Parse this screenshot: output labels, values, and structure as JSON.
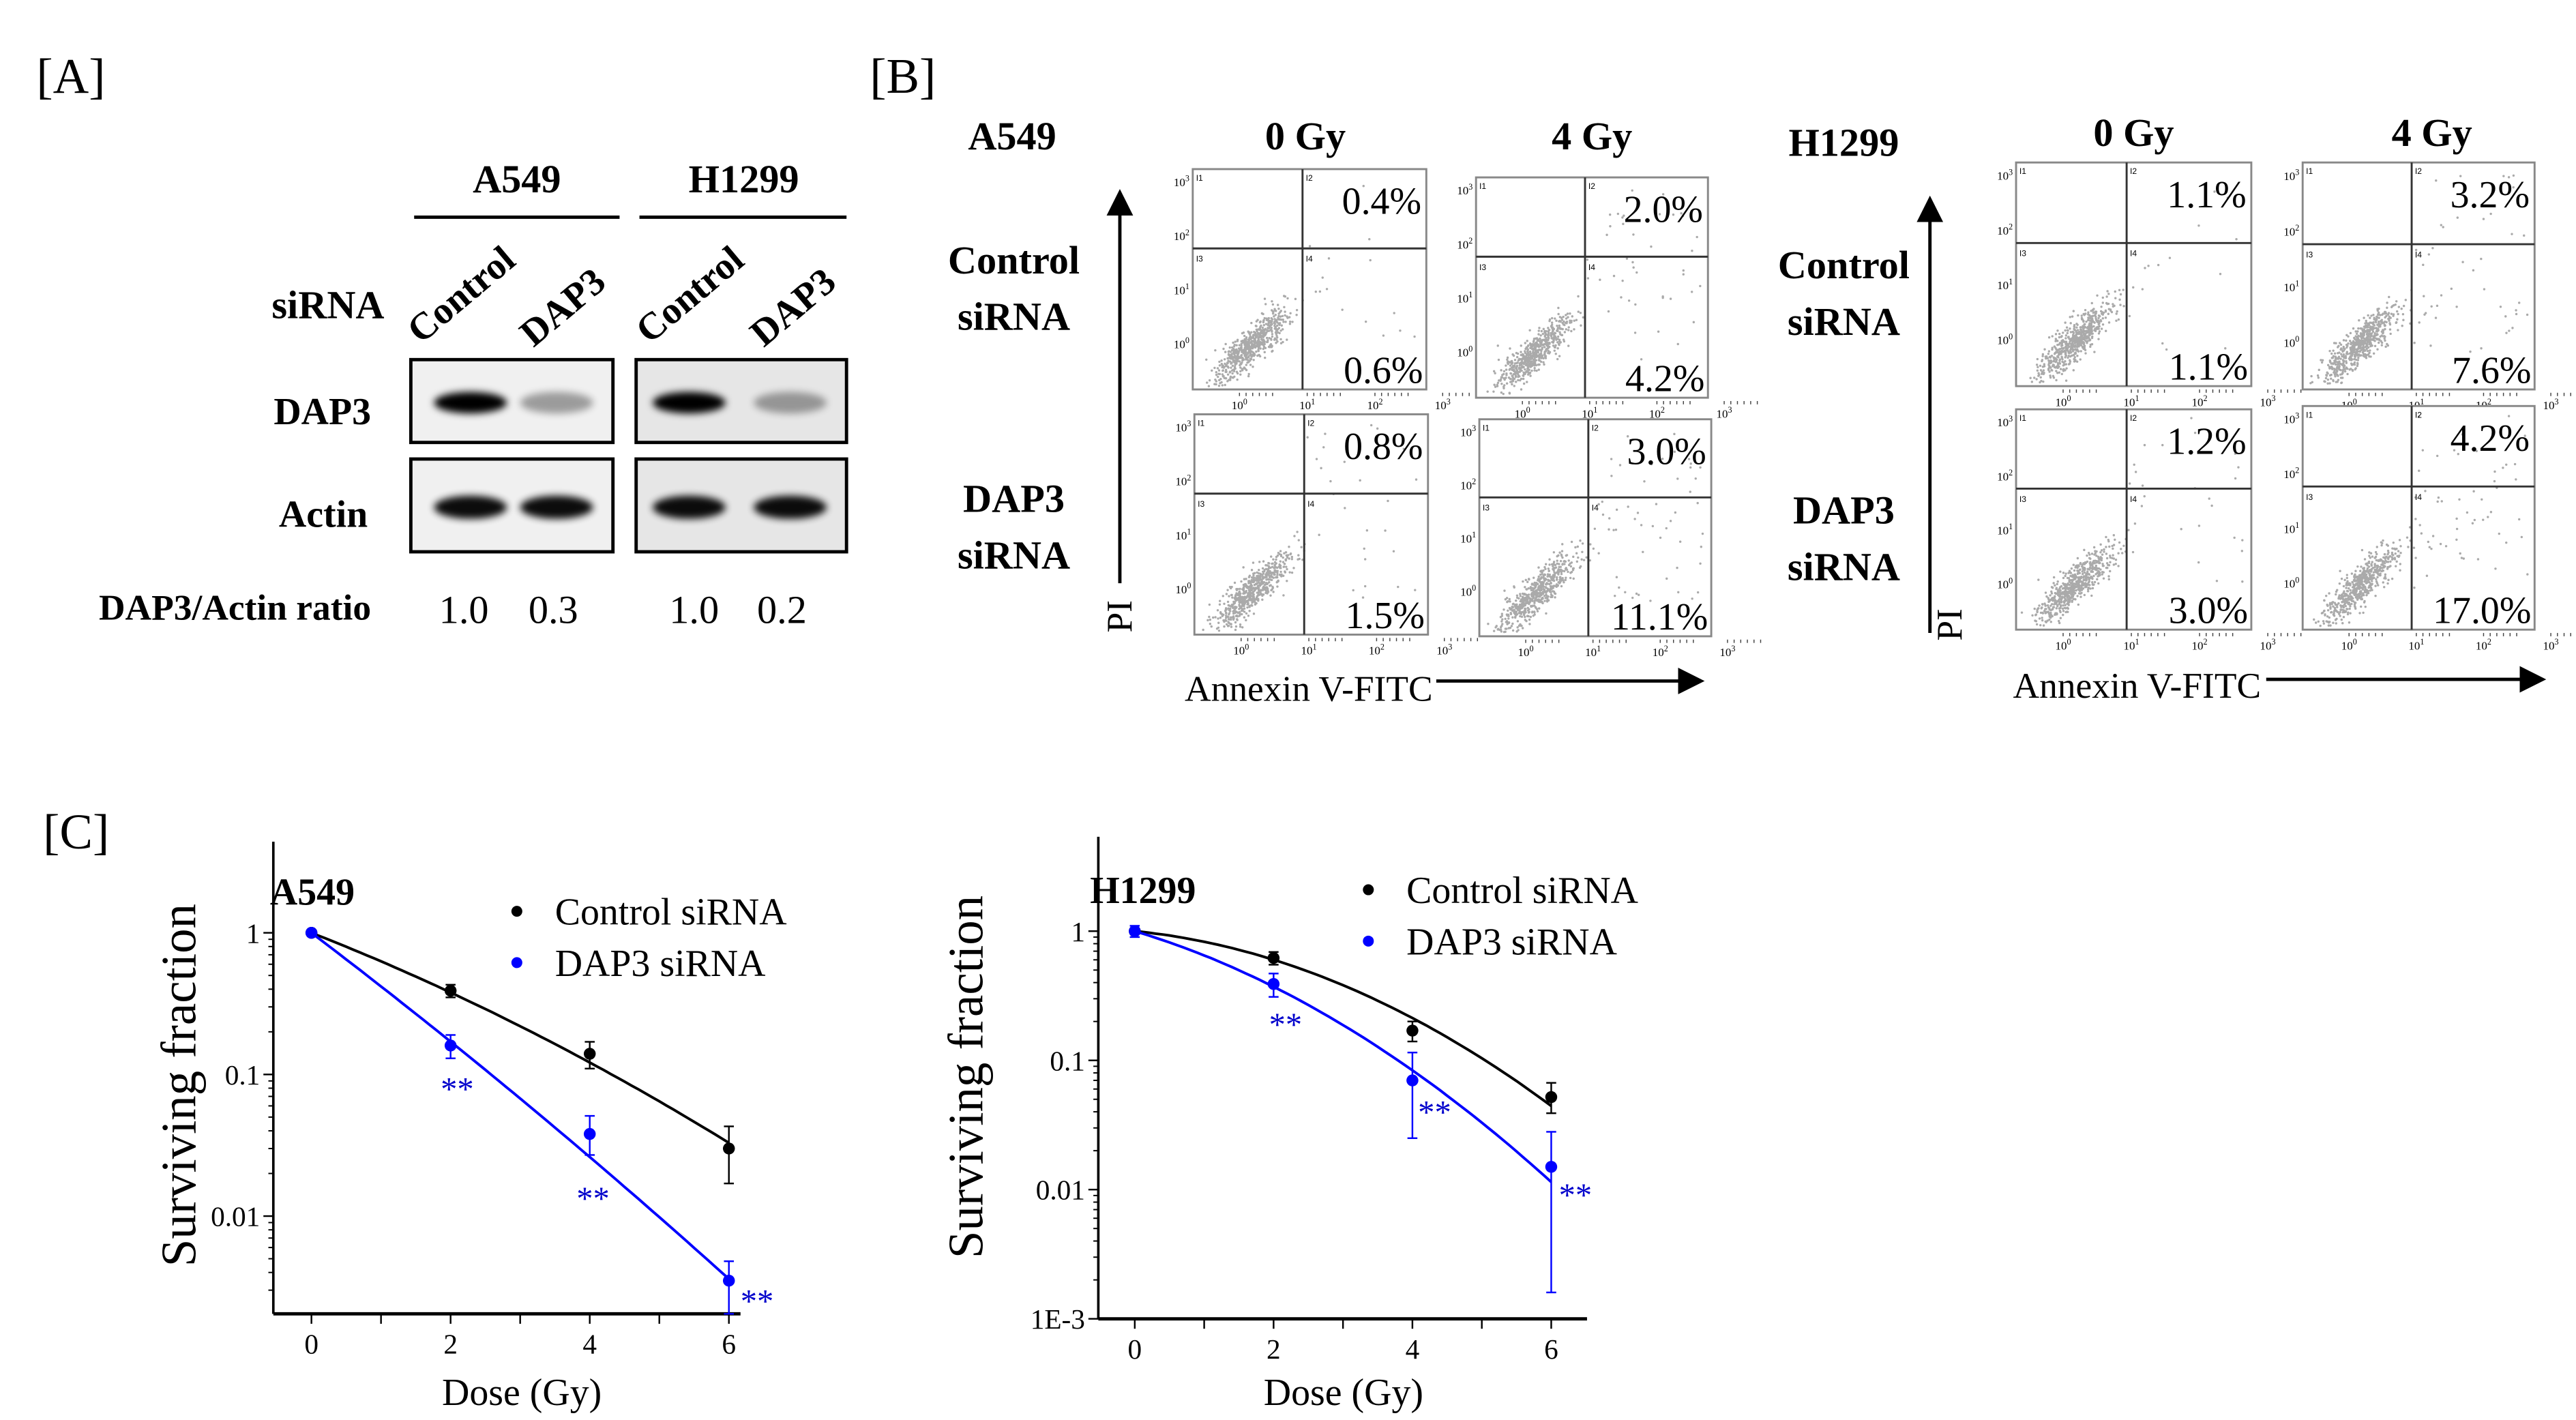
{
  "panel_labels": {
    "a": "[A]",
    "b": "[B]",
    "c": "[C]"
  },
  "western": {
    "cell_lines": [
      "A549",
      "H1299"
    ],
    "sirna_label": "siRNA",
    "lanes": [
      "Control",
      "DAP3"
    ],
    "rows": [
      "DAP3",
      "Actin"
    ],
    "ratio_label": "DAP3/Actin ratio",
    "ratios": [
      [
        "1.0",
        "0.3"
      ],
      [
        "1.0",
        "0.2"
      ]
    ],
    "ratio_values": [
      [
        1.0,
        0.3
      ],
      [
        1.0,
        0.2
      ]
    ]
  },
  "flow": {
    "y_axis_label": "PI",
    "x_axis_label": "Annexin V-FITC",
    "tick_base": "10",
    "tick_exponents": [
      "0",
      "1",
      "2",
      "3"
    ],
    "quadrant_labels": [
      "I1",
      "I2",
      "I3",
      "I4"
    ],
    "groups": [
      {
        "cell": "A549",
        "doses": [
          "0 Gy",
          "4 Gy"
        ],
        "rows": [
          [
            "Control",
            "siRNA"
          ],
          [
            "DAP3",
            "siRNA"
          ]
        ],
        "plots": [
          {
            "upper_right": "0.4%",
            "lower_right": "0.6%"
          },
          {
            "upper_right": "2.0%",
            "lower_right": "4.2%"
          },
          {
            "upper_right": "0.8%",
            "lower_right": "1.5%"
          },
          {
            "upper_right": "3.0%",
            "lower_right": "11.1%"
          }
        ]
      },
      {
        "cell": "H1299",
        "doses": [
          "0 Gy",
          "4 Gy"
        ],
        "rows": [
          [
            "Control",
            "siRNA"
          ],
          [
            "DAP3",
            "siRNA"
          ]
        ],
        "plots": [
          {
            "upper_right": "1.1%",
            "lower_right": "1.1%"
          },
          {
            "upper_right": "3.2%",
            "lower_right": "7.6%"
          },
          {
            "upper_right": "1.2%",
            "lower_right": "3.0%"
          },
          {
            "upper_right": "4.2%",
            "lower_right": "17.0%"
          }
        ]
      }
    ]
  },
  "chart_data": [
    {
      "type": "scatter",
      "title": "A549",
      "xlabel": "Dose (Gy)",
      "ylabel": "Surviving fraction",
      "yscale": "log",
      "ylim": [
        0.002,
        1.5
      ],
      "xlim": [
        -0.5,
        6.5
      ],
      "x_ticks": [
        "0",
        "2",
        "4",
        "6"
      ],
      "y_ticks": [
        {
          "value": 1,
          "label": "1"
        },
        {
          "value": 0.1,
          "label": "0.1"
        },
        {
          "value": 0.01,
          "label": "0.01"
        }
      ],
      "legend_position": "top-right",
      "x": [
        0,
        2,
        4,
        6
      ],
      "series": [
        {
          "name": "Control siRNA",
          "color": "#000000",
          "values": [
            1,
            0.39,
            0.14,
            0.03
          ],
          "err_plus": [
            0.02,
            0.04,
            0.03,
            0.013
          ],
          "err_minus": [
            0.02,
            0.04,
            0.03,
            0.013
          ],
          "fit": {
            "alpha": 0.443,
            "beta": 0.021
          }
        },
        {
          "name": "DAP3 siRNA",
          "color": "#0000ff",
          "values": [
            1,
            0.16,
            0.038,
            0.0035
          ],
          "err_plus": [
            0.02,
            0.03,
            0.013,
            0.0013
          ],
          "err_minus": [
            0.02,
            0.03,
            0.011,
            0.0015
          ],
          "fit": {
            "alpha": 0.858,
            "beta": 0.0133
          }
        }
      ],
      "annotations": [
        {
          "x": 2,
          "text": "**"
        },
        {
          "x": 4,
          "text": "**"
        },
        {
          "x": 6,
          "text": "**"
        }
      ]
    },
    {
      "type": "scatter",
      "title": "H1299",
      "xlabel": "Dose (Gy)",
      "ylabel": "Surviving fraction",
      "yscale": "log",
      "ylim": [
        0.001,
        1.5
      ],
      "xlim": [
        -0.5,
        6.5
      ],
      "x_ticks": [
        "0",
        "2",
        "4",
        "6"
      ],
      "y_ticks": [
        {
          "value": 1,
          "label": "1"
        },
        {
          "value": 0.1,
          "label": "0.1"
        },
        {
          "value": 0.01,
          "label": "0.01"
        },
        {
          "value": 0.001,
          "label": "1E-3"
        }
      ],
      "legend_position": "top-right",
      "x": [
        0,
        2,
        4,
        6
      ],
      "series": [
        {
          "name": "Control siRNA",
          "color": "#000000",
          "values": [
            1,
            0.62,
            0.17,
            0.052
          ],
          "err_plus": [
            0.05,
            0.07,
            0.03,
            0.015
          ],
          "err_minus": [
            0.05,
            0.07,
            0.03,
            0.013
          ],
          "fit": {
            "alpha": 0.123,
            "beta": 0.066
          }
        },
        {
          "name": "DAP3 siRNA",
          "color": "#0000ff",
          "values": [
            1,
            0.39,
            0.07,
            0.015
          ],
          "err_plus": [
            0.1,
            0.08,
            0.045,
            0.013
          ],
          "err_minus": [
            0.1,
            0.08,
            0.045,
            0.0134
          ],
          "fit": {
            "alpha": 0.37,
            "beta": 0.0625
          }
        }
      ],
      "annotations": [
        {
          "x": 2,
          "text": "**"
        },
        {
          "x": 4,
          "text": "**"
        },
        {
          "x": 6,
          "text": "**"
        }
      ]
    }
  ]
}
